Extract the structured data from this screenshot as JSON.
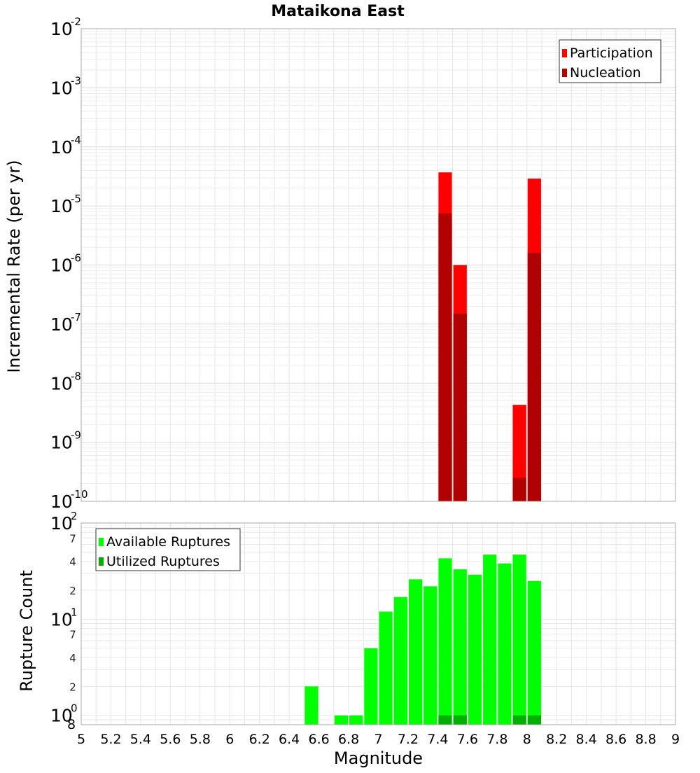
{
  "chart_data": [
    {
      "type": "bar",
      "title": "Mataikona East",
      "xlabel": "",
      "ylabel": "Incremental Rate (per yr)",
      "yscale": "log",
      "xlim": [
        5,
        9
      ],
      "ylim": [
        1e-10,
        0.01
      ],
      "grid": true,
      "legend_placement": "top-right",
      "bar_width": 0.1,
      "series": [
        {
          "name": "Participation",
          "color": "#ff0000",
          "x": [
            7.45,
            7.55,
            7.95,
            8.05
          ],
          "values": [
            3.7e-05,
            1e-06,
            4.3e-09,
            2.9e-05
          ]
        },
        {
          "name": "Nucleation",
          "color": "#b00000",
          "x": [
            7.45,
            7.55,
            7.95,
            8.05
          ],
          "values": [
            7.5e-06,
            1.5e-07,
            2.5e-10,
            1.6e-06
          ]
        }
      ]
    },
    {
      "type": "bar",
      "title": "",
      "xlabel": "Magnitude",
      "ylabel": "Rupture Count",
      "yscale": "log",
      "xlim": [
        5,
        9
      ],
      "ylim": [
        0.8,
        100
      ],
      "grid": true,
      "legend_placement": "top-left",
      "bar_width": 0.1,
      "series": [
        {
          "name": "Available Ruptures",
          "color": "#00ff00",
          "x": [
            6.55,
            6.75,
            6.85,
            6.95,
            7.05,
            7.15,
            7.25,
            7.35,
            7.45,
            7.55,
            7.65,
            7.75,
            7.85,
            7.95,
            8.05
          ],
          "values": [
            2,
            1,
            1,
            5,
            12,
            17,
            26,
            22,
            43,
            33,
            29,
            47,
            38,
            47,
            25
          ]
        },
        {
          "name": "Utilized Ruptures",
          "color": "#00b000",
          "x": [
            7.45,
            7.55,
            7.95,
            8.05
          ],
          "values": [
            1,
            1,
            1,
            1
          ]
        }
      ]
    }
  ],
  "labels": {
    "title": "Mataikona East",
    "xlabel": "Magnitude",
    "ylabel_top": "Incremental Rate (per yr)",
    "ylabel_bottom": "Rupture Count",
    "x_ticks": [
      "5",
      "5.2",
      "5.4",
      "5.6",
      "5.8",
      "6",
      "6.2",
      "6.4",
      "6.6",
      "6.8",
      "7",
      "7.2",
      "7.4",
      "7.6",
      "7.8",
      "8",
      "8.2",
      "8.4",
      "8.6",
      "8.8",
      "9"
    ],
    "top_y_ticks": [
      {
        "base": "10",
        "exp": "-10"
      },
      {
        "base": "10",
        "exp": "-9"
      },
      {
        "base": "10",
        "exp": "-8"
      },
      {
        "base": "10",
        "exp": "-7"
      },
      {
        "base": "10",
        "exp": "-6"
      },
      {
        "base": "10",
        "exp": "-5"
      },
      {
        "base": "10",
        "exp": "-4"
      },
      {
        "base": "10",
        "exp": "-3"
      },
      {
        "base": "10",
        "exp": "-2"
      }
    ],
    "bottom_y_major_ticks": [
      {
        "base": "10",
        "exp": "0"
      },
      {
        "base": "10",
        "exp": "1"
      },
      {
        "base": "10",
        "exp": "2"
      }
    ],
    "bottom_y_minor_ticks": [
      "8",
      "2",
      "4",
      "7",
      "2",
      "4",
      "7"
    ],
    "legend_top": [
      "Participation",
      "Nucleation"
    ],
    "legend_bottom": [
      "Available Ruptures",
      "Utilized Ruptures"
    ]
  }
}
